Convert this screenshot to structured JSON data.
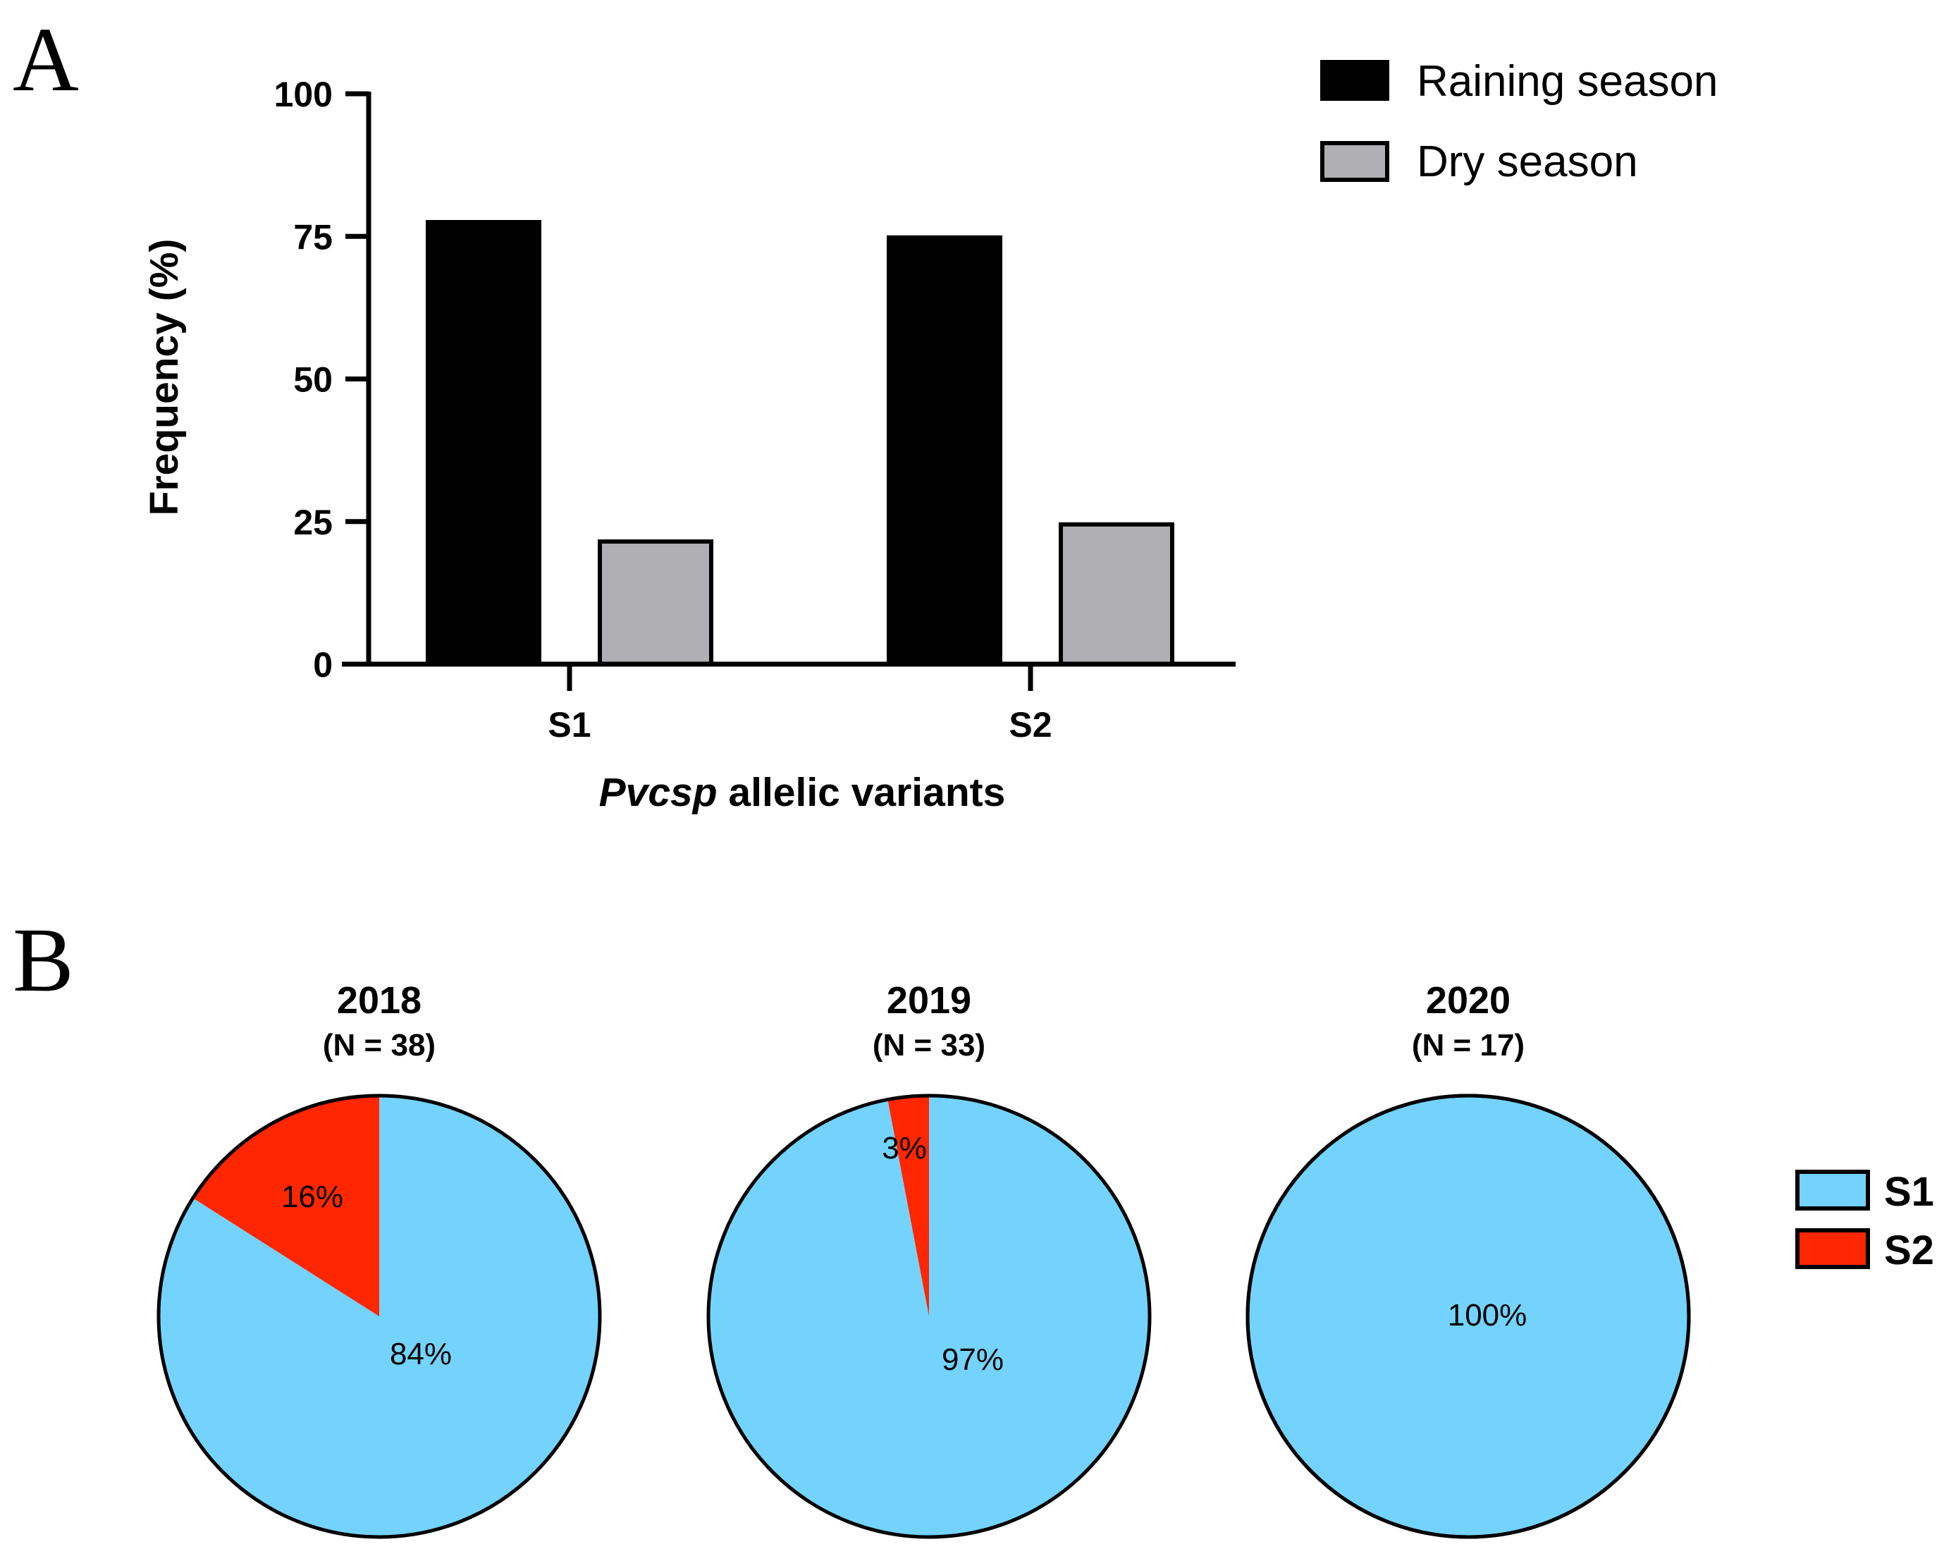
{
  "chart_data": [
    {
      "panel": "A",
      "type": "bar",
      "categories": [
        "S1",
        "S2"
      ],
      "series": [
        {
          "name": "Raining season",
          "color": "#000000",
          "values": [
            77.5,
            74.8
          ]
        },
        {
          "name": "Dry season",
          "color": "#b0b0b4",
          "values": [
            21.5,
            24.5
          ]
        }
      ],
      "xlabel_italic": "Pvcsp",
      "xlabel_rest": " allelic variants",
      "ylabel": "Frequency  (%)",
      "ylim": [
        0,
        100
      ],
      "yticks": [
        "0",
        "25",
        "50",
        "75",
        "100"
      ],
      "legend": "top-right"
    },
    {
      "panel": "B",
      "type": "pie",
      "legend": [
        {
          "name": "S1",
          "color": "#74d3fd"
        },
        {
          "name": "S2",
          "color": "#ff2600"
        }
      ],
      "pies": [
        {
          "title": "2018",
          "subtitle": "(N = 38)",
          "slices": [
            {
              "name": "S1",
              "value": 84,
              "label": "84%"
            },
            {
              "name": "S2",
              "value": 16,
              "label": "16%"
            }
          ]
        },
        {
          "title": "2019",
          "subtitle": "(N = 33)",
          "slices": [
            {
              "name": "S1",
              "value": 97,
              "label": "97%"
            },
            {
              "name": "S2",
              "value": 3,
              "label": "3%"
            }
          ]
        },
        {
          "title": "2020",
          "subtitle": "(N = 17)",
          "slices": [
            {
              "name": "S1",
              "value": 100,
              "label": "100%"
            }
          ]
        }
      ]
    }
  ]
}
